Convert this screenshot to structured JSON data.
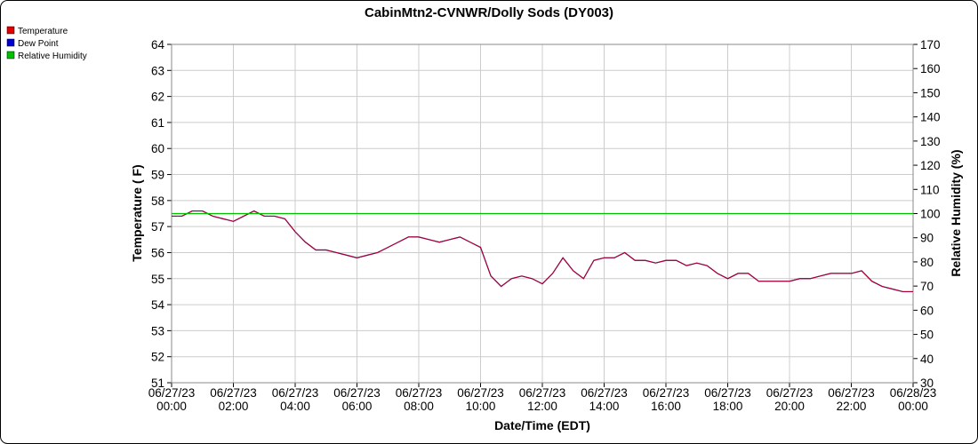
{
  "chart_data": {
    "type": "line",
    "title": "CabinMtn2-CVNWR/Dolly Sods (DY003)",
    "xlabel": "Date/Time (EDT)",
    "ylabel": "Temperature ( F)",
    "y2label": "Relative Humidity (%)",
    "x": [
      0,
      20,
      40,
      60,
      80,
      100,
      120,
      140,
      160,
      180,
      200,
      220,
      240,
      260,
      280,
      300,
      320,
      340,
      360,
      380,
      400,
      420,
      440,
      460,
      480,
      500,
      520,
      540,
      560,
      580,
      600,
      620,
      640,
      660,
      680,
      700,
      720,
      740,
      760,
      780,
      800,
      820,
      840,
      860,
      880,
      900,
      920,
      940,
      960,
      980,
      1000,
      1020,
      1040,
      1060,
      1080,
      1100,
      1120,
      1140,
      1160,
      1180,
      1200,
      1220,
      1240,
      1260,
      1280,
      1300,
      1320,
      1340,
      1360,
      1380,
      1400,
      1420,
      1440
    ],
    "series": [
      {
        "name": "Temperature",
        "color": "#e00000",
        "values": [
          57.4,
          57.4,
          57.6,
          57.6,
          57.4,
          57.3,
          57.2,
          57.4,
          57.6,
          57.4,
          57.4,
          57.3,
          56.8,
          56.4,
          56.1,
          56.1,
          56.0,
          55.9,
          55.8,
          55.9,
          56.0,
          56.2,
          56.4,
          56.6,
          56.6,
          56.5,
          56.4,
          56.5,
          56.6,
          56.4,
          56.2,
          55.1,
          54.7,
          55.0,
          55.1,
          55.0,
          54.8,
          55.2,
          55.8,
          55.3,
          55.0,
          55.7,
          55.8,
          55.8,
          56.0,
          55.7,
          55.7,
          55.6,
          55.7,
          55.7,
          55.5,
          55.6,
          55.5,
          55.2,
          55.0,
          55.2,
          55.2,
          54.9,
          54.9,
          54.9,
          54.9,
          55.0,
          55.0,
          55.1,
          55.2,
          55.2,
          55.2,
          55.3,
          54.9,
          54.7,
          54.6,
          54.5,
          54.5
        ]
      },
      {
        "name": "Dew Point",
        "color": "#0000d0",
        "values": [
          57.4,
          57.4,
          57.6,
          57.6,
          57.4,
          57.3,
          57.2,
          57.4,
          57.6,
          57.4,
          57.4,
          57.3,
          56.8,
          56.4,
          56.1,
          56.1,
          56.0,
          55.9,
          55.8,
          55.9,
          56.0,
          56.2,
          56.4,
          56.6,
          56.6,
          56.5,
          56.4,
          56.5,
          56.6,
          56.4,
          56.2,
          55.1,
          54.7,
          55.0,
          55.1,
          55.0,
          54.8,
          55.2,
          55.8,
          55.3,
          55.0,
          55.7,
          55.8,
          55.8,
          56.0,
          55.7,
          55.7,
          55.6,
          55.7,
          55.7,
          55.5,
          55.6,
          55.5,
          55.2,
          55.0,
          55.2,
          55.2,
          54.9,
          54.9,
          54.9,
          54.9,
          55.0,
          55.0,
          55.1,
          55.2,
          55.2,
          55.2,
          55.3,
          54.9,
          54.7,
          54.6,
          54.5,
          54.5
        ]
      },
      {
        "name": "Relative Humidity",
        "color": "#00c000",
        "axis": "y2",
        "x": [
          0,
          1440
        ],
        "values": [
          100,
          100
        ]
      }
    ],
    "xlim": [
      0,
      1440
    ],
    "xticks": [
      {
        "value": 0,
        "label": "06/27/23 00:00"
      },
      {
        "value": 120,
        "label": "06/27/23 02:00"
      },
      {
        "value": 240,
        "label": "06/27/23 04:00"
      },
      {
        "value": 360,
        "label": "06/27/23 06:00"
      },
      {
        "value": 480,
        "label": "06/27/23 08:00"
      },
      {
        "value": 600,
        "label": "06/27/23 10:00"
      },
      {
        "value": 720,
        "label": "06/27/23 12:00"
      },
      {
        "value": 840,
        "label": "06/27/23 14:00"
      },
      {
        "value": 960,
        "label": "06/27/23 16:00"
      },
      {
        "value": 1080,
        "label": "06/27/23 18:00"
      },
      {
        "value": 1200,
        "label": "06/27/23 20:00"
      },
      {
        "value": 1320,
        "label": "06/27/23 22:00"
      },
      {
        "value": 1440,
        "label": "06/28/23 00:00"
      }
    ],
    "ylim": [
      51,
      64
    ],
    "yticks": [
      51,
      52,
      53,
      54,
      55,
      56,
      57,
      58,
      59,
      60,
      61,
      62,
      63,
      64
    ],
    "y2lim": [
      30,
      170
    ],
    "y2ticks": [
      30,
      40,
      50,
      60,
      70,
      80,
      90,
      100,
      110,
      120,
      130,
      140,
      150,
      160,
      170
    ],
    "grid": true,
    "legend": "top-left"
  }
}
